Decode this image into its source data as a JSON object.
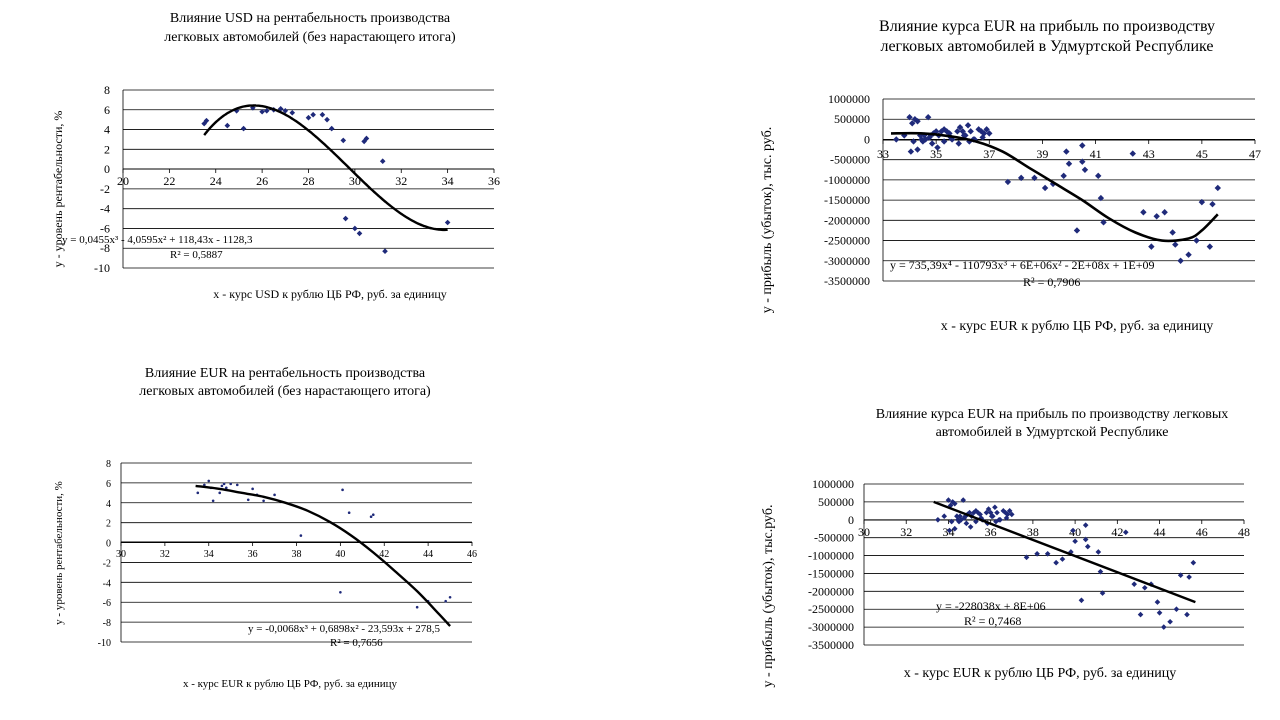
{
  "chart_data": [
    {
      "type": "scatter",
      "title": [
        "Влияние USD на рентабельность производства",
        "легковых автомобилей (без нарастающего итога)"
      ],
      "xlabel": "x - курс USD к рублю ЦБ РФ, руб. за единицу",
      "ylabel": "y - уровень рентабельности, %",
      "xlim": [
        20,
        36
      ],
      "ylim": [
        -10,
        8
      ],
      "x_ticks": [
        "20",
        "22",
        "24",
        "26",
        "28",
        "30",
        "32",
        "34",
        "36"
      ],
      "y_ticks": [
        "8",
        "6",
        "4",
        "2",
        "0",
        "-2",
        "-4",
        "-6",
        "-8",
        "-10"
      ],
      "grid": "horizontal",
      "equation": "y = 0,0455x³ - 4,0595x² + 118,43x - 1128,3",
      "r2": "R² = 0,5887",
      "trend": {
        "kind": "poly",
        "coefficients": [
          -1128.3,
          118.43,
          -4.0595,
          0.0455
        ],
        "x_range": [
          23.5,
          34
        ]
      },
      "series": [
        {
          "x": [
            23.5,
            23.6,
            24.5,
            24.9,
            25.2,
            25.6,
            26.0,
            26.2,
            26.5,
            26.8,
            27.0,
            27.3,
            28.0,
            28.2,
            28.6,
            28.8,
            29.0,
            29.5,
            29.6,
            30.0,
            30.2,
            30.4,
            30.5,
            31.2,
            31.3,
            34.0
          ],
          "y": [
            4.6,
            4.9,
            4.4,
            5.9,
            4.1,
            6.2,
            5.8,
            5.9,
            6.0,
            6.1,
            5.9,
            5.7,
            5.2,
            5.5,
            5.5,
            5.0,
            4.1,
            2.9,
            -5.0,
            -6.0,
            -6.5,
            2.8,
            3.1,
            0.8,
            -8.3,
            -5.4
          ]
        }
      ]
    },
    {
      "type": "scatter",
      "title": [
        "Влияние курса EUR на прибыль по производству",
        "легковых автомобилей в Удмуртской Республике"
      ],
      "xlabel": "x - курс EUR к рублю ЦБ РФ, руб. за единицу",
      "ylabel": "y - прибыль (убыток), тыс. руб.",
      "xlim": [
        33,
        47
      ],
      "ylim": [
        -3500000,
        1000000
      ],
      "x_ticks": [
        "33",
        "35",
        "37",
        "39",
        "41",
        "43",
        "45",
        "47"
      ],
      "y_ticks": [
        "1000000",
        "500000",
        "0",
        "-500000",
        "-1000000",
        "-1500000",
        "-2000000",
        "-2500000",
        "-3000000",
        "-3500000"
      ],
      "grid": "horizontal",
      "equation": "y = 735,39x⁴ - 110793x³ + 6E+06x² - 2E+08x + 1E+09",
      "r2": "R² = 0,7906",
      "trend": {
        "kind": "points",
        "x": [
          33.3,
          34.5,
          35.5,
          36.5,
          37.5,
          38.5,
          39.5,
          40.5,
          41.5,
          42.5,
          43.5,
          44.5,
          45.0,
          45.6
        ],
        "y": [
          150000,
          150000,
          80000,
          -50000,
          -300000,
          -700000,
          -1100000,
          -1500000,
          -1950000,
          -2300000,
          -2500000,
          -2450000,
          -2250000,
          -1850000
        ]
      },
      "series": [
        {
          "x": [
            33.5,
            33.8,
            34.0,
            34.1,
            34.2,
            34.3,
            34.4,
            34.5,
            34.6,
            34.7,
            34.8,
            34.9,
            35.0,
            35.1,
            35.2,
            35.3,
            35.4,
            35.5,
            35.6,
            35.8,
            35.9,
            36.0,
            36.1,
            36.2,
            36.3,
            36.4,
            36.6,
            36.7,
            36.8,
            36.9,
            37.0,
            34.05,
            34.15,
            34.3,
            34.45,
            34.55,
            34.75,
            34.85,
            35.05,
            35.3,
            35.55,
            35.85,
            36.05,
            36.25,
            36.45,
            36.75,
            37.7,
            38.2,
            38.7,
            39.1,
            39.4,
            39.8,
            39.9,
            40.0,
            40.3,
            40.5,
            40.5,
            40.6,
            41.1,
            41.2,
            41.3,
            42.4,
            42.8,
            43.1,
            43.3,
            43.6,
            43.9,
            44.0,
            44.2,
            44.5,
            44.8,
            45.0,
            45.3,
            45.4,
            45.6
          ],
          "y": [
            0,
            100000,
            550000,
            400000,
            500000,
            450000,
            100000,
            -50000,
            0,
            550000,
            100000,
            150000,
            200000,
            100000,
            200000,
            250000,
            200000,
            150000,
            0,
            200000,
            300000,
            200000,
            100000,
            350000,
            200000,
            0,
            250000,
            200000,
            150000,
            250000,
            150000,
            -300000,
            -50000,
            -250000,
            0,
            100000,
            50000,
            -100000,
            -200000,
            -50000,
            50000,
            -100000,
            100000,
            -50000,
            0,
            50000,
            -1050000,
            -950000,
            -950000,
            -1200000,
            -1100000,
            -900000,
            -300000,
            -600000,
            -2250000,
            -150000,
            -550000,
            -750000,
            -900000,
            -1450000,
            -2050000,
            -350000,
            -1800000,
            -2650000,
            -1900000,
            -1800000,
            -2300000,
            -2600000,
            -3000000,
            -2850000,
            -2500000,
            -1550000,
            -2650000,
            -1600000,
            -1200000
          ]
        }
      ]
    },
    {
      "type": "scatter",
      "title": [
        "Влияние EUR на рентабельность производства",
        "легковых автомобилей (без нарастающего итога)"
      ],
      "xlabel": "x - курс EUR к рублю ЦБ РФ, руб. за единицу",
      "ylabel": "y - уровень рентабельности, %",
      "xlim": [
        30,
        46
      ],
      "ylim": [
        -10,
        8
      ],
      "x_ticks": [
        "30",
        "32",
        "34",
        "36",
        "38",
        "40",
        "42",
        "44",
        "46"
      ],
      "y_ticks": [
        "8",
        "6",
        "4",
        "2",
        "0",
        "-2",
        "-4",
        "-6",
        "-8",
        "-10"
      ],
      "grid": "horizontal",
      "equation": "y = -0,0068x³ + 0,6898x² - 23,593x + 278,5",
      "r2": "R² = 0,7656",
      "trend": {
        "kind": "points",
        "x": [
          33.4,
          34.5,
          35.5,
          36.5,
          37.5,
          38.5,
          39.5,
          40.5,
          41.5,
          42.5,
          43.5,
          44.5,
          45.0
        ],
        "y": [
          5.7,
          5.4,
          5.0,
          4.6,
          4.0,
          3.2,
          2.1,
          0.7,
          -1.0,
          -2.9,
          -4.9,
          -7.2,
          -8.4
        ]
      },
      "series": [
        {
          "x": [
            33.5,
            33.8,
            34.0,
            34.1,
            34.2,
            34.5,
            34.6,
            34.7,
            34.8,
            35.0,
            35.3,
            35.8,
            36.0,
            36.2,
            36.5,
            37.0,
            38.2,
            40.0,
            40.1,
            40.4,
            41.4,
            41.5,
            43.5,
            44.0,
            44.8,
            45.0
          ],
          "y": [
            5.0,
            5.8,
            6.2,
            5.5,
            4.2,
            5.0,
            5.7,
            5.9,
            5.5,
            5.9,
            5.8,
            4.3,
            5.4,
            4.8,
            4.2,
            4.8,
            0.7,
            -5.0,
            5.3,
            3.0,
            2.6,
            2.8,
            -6.5,
            -5.9,
            -5.9,
            -5.5
          ]
        }
      ]
    },
    {
      "type": "scatter",
      "title": [
        "Влияние курса EUR на прибыль по производству легковых",
        "автомобилей в Удмуртской Республике"
      ],
      "xlabel": "x - курс EUR к рублю ЦБ РФ, руб. за единицу",
      "ylabel": "y - прибыль (убыток), тыс.руб.",
      "xlim": [
        30,
        48
      ],
      "ylim": [
        -3500000,
        1000000
      ],
      "x_ticks": [
        "30",
        "32",
        "34",
        "36",
        "38",
        "40",
        "42",
        "44",
        "46",
        "48"
      ],
      "y_ticks": [
        "1000000",
        "500000",
        "0",
        "-500000",
        "-1000000",
        "-1500000",
        "-2000000",
        "-2500000",
        "-3000000",
        "-3500000"
      ],
      "grid": "horizontal",
      "equation": "y = -228038x + 8E+06",
      "r2": "R² = 0,7468",
      "trend": {
        "kind": "points",
        "x": [
          33.3,
          45.7
        ],
        "y": [
          500000,
          -2300000
        ]
      },
      "series": [
        {
          "x": [
            33.5,
            33.8,
            34.0,
            34.1,
            34.2,
            34.3,
            34.4,
            34.5,
            34.6,
            34.7,
            34.8,
            34.9,
            35.0,
            35.1,
            35.2,
            35.3,
            35.4,
            35.5,
            35.6,
            35.8,
            35.9,
            36.0,
            36.1,
            36.2,
            36.3,
            36.4,
            36.6,
            36.7,
            36.8,
            36.9,
            37.0,
            34.05,
            34.15,
            34.3,
            34.45,
            34.55,
            34.75,
            34.85,
            35.05,
            35.3,
            35.55,
            35.85,
            36.05,
            36.25,
            36.45,
            36.75,
            37.7,
            38.2,
            38.7,
            39.1,
            39.4,
            39.8,
            39.9,
            40.0,
            40.3,
            40.5,
            40.5,
            40.6,
            41.1,
            41.2,
            41.3,
            42.4,
            42.8,
            43.1,
            43.3,
            43.6,
            43.9,
            44.0,
            44.2,
            44.5,
            44.8,
            45.0,
            45.3,
            45.4,
            45.6
          ],
          "y": [
            0,
            100000,
            550000,
            400000,
            500000,
            450000,
            100000,
            -50000,
            0,
            550000,
            100000,
            150000,
            200000,
            100000,
            200000,
            250000,
            200000,
            150000,
            0,
            200000,
            300000,
            200000,
            100000,
            350000,
            200000,
            0,
            250000,
            200000,
            150000,
            250000,
            150000,
            -300000,
            -50000,
            -250000,
            0,
            100000,
            50000,
            -100000,
            -200000,
            -50000,
            50000,
            -100000,
            100000,
            -50000,
            0,
            50000,
            -1050000,
            -950000,
            -950000,
            -1200000,
            -1100000,
            -900000,
            -300000,
            -600000,
            -2250000,
            -150000,
            -550000,
            -750000,
            -900000,
            -1450000,
            -2050000,
            -350000,
            -1800000,
            -2650000,
            -1900000,
            -1800000,
            -2300000,
            -2600000,
            -3000000,
            -2850000,
            -2500000,
            -1550000,
            -2650000,
            -1600000,
            -1200000
          ]
        }
      ]
    }
  ]
}
